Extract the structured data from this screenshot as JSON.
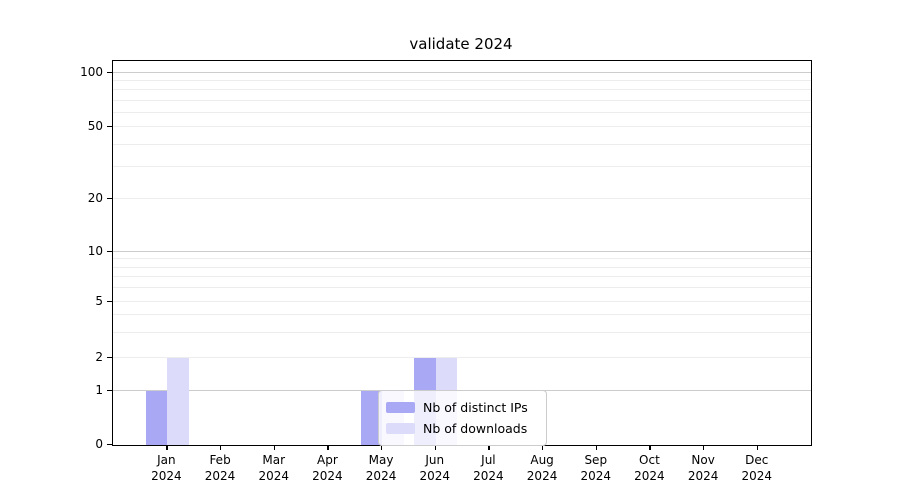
{
  "title": "validate 2024",
  "chart_data": {
    "type": "bar",
    "title": "validate 2024",
    "categories": [
      "Jan 2024",
      "Feb 2024",
      "Mar 2024",
      "Apr 2024",
      "May 2024",
      "Jun 2024",
      "Jul 2024",
      "Aug 2024",
      "Sep 2024",
      "Oct 2024",
      "Nov 2024",
      "Dec 2024"
    ],
    "series": [
      {
        "name": "Nb of distinct IPs",
        "color": "#a8a8f5",
        "values": [
          1,
          0,
          0,
          0,
          1,
          2,
          0,
          0,
          0,
          0,
          0,
          0
        ]
      },
      {
        "name": "Nb of downloads",
        "color": "#dcdcfa",
        "values": [
          2,
          0,
          0,
          0,
          1,
          2,
          0,
          0,
          0,
          0,
          0,
          0
        ]
      }
    ],
    "xlabel": "",
    "ylabel": "",
    "yaxis": {
      "scale": "log-with-zero",
      "ticks": [
        0,
        1,
        2,
        5,
        10,
        20,
        50,
        100
      ],
      "top": 100
    },
    "grid": "both",
    "legend": {
      "location": "lower-center-inside",
      "entries": [
        "Nb of distinct IPs",
        "Nb of downloads"
      ]
    }
  },
  "colors": {
    "grid_major": "#cccccc",
    "grid_minor": "#ededed",
    "axis": "#000000",
    "legend_border": "#cccccc"
  }
}
